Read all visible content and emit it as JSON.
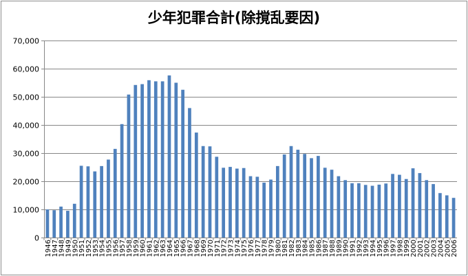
{
  "chart_data": {
    "type": "bar",
    "title": "少年犯罪合計(除撹乱要因)",
    "xlabel": "",
    "ylabel": "",
    "ylim": [
      0,
      70000
    ],
    "yticks": [
      0,
      10000,
      20000,
      30000,
      40000,
      50000,
      60000,
      70000
    ],
    "ytick_labels": [
      "0",
      "10,000",
      "20,000",
      "30,000",
      "40,000",
      "50,000",
      "60,000",
      "70,000"
    ],
    "grid": true,
    "legend": "none",
    "bar_color": "#4f81bd",
    "categories": [
      "1946",
      "1947",
      "1948",
      "1949",
      "1950",
      "1951",
      "1952",
      "1953",
      "1954",
      "1955",
      "1956",
      "1957",
      "1958",
      "1959",
      "1960",
      "1961",
      "1962",
      "1963",
      "1964",
      "1965",
      "1966",
      "1967",
      "1968",
      "1969",
      "1970",
      "1971",
      "1972",
      "1973",
      "1974",
      "1975",
      "1976",
      "1977",
      "1978",
      "1979",
      "1980",
      "1981",
      "1982",
      "1983",
      "1984",
      "1985",
      "1986",
      "1987",
      "1988",
      "1989",
      "1990",
      "1991",
      "1992",
      "1993",
      "1994",
      "1995",
      "1996",
      "1997",
      "1998",
      "1999",
      "2000",
      "2001",
      "2002",
      "2003",
      "2004",
      "2005",
      "2006"
    ],
    "values": [
      10000,
      9700,
      11000,
      9500,
      12000,
      25500,
      25300,
      23500,
      25400,
      27700,
      31500,
      40300,
      50800,
      54200,
      54500,
      55900,
      55500,
      55500,
      57600,
      55000,
      52500,
      46000,
      37300,
      32500,
      32400,
      28700,
      24800,
      25100,
      24500,
      24700,
      21800,
      21600,
      19500,
      20600,
      25400,
      29500,
      32500,
      31200,
      29700,
      28200,
      29000,
      24800,
      24100,
      21800,
      20400,
      19300,
      19300,
      18700,
      18400,
      18800,
      19200,
      22600,
      22300,
      20800,
      24600,
      22900,
      20400,
      19000,
      15800,
      15000,
      14100
    ]
  }
}
